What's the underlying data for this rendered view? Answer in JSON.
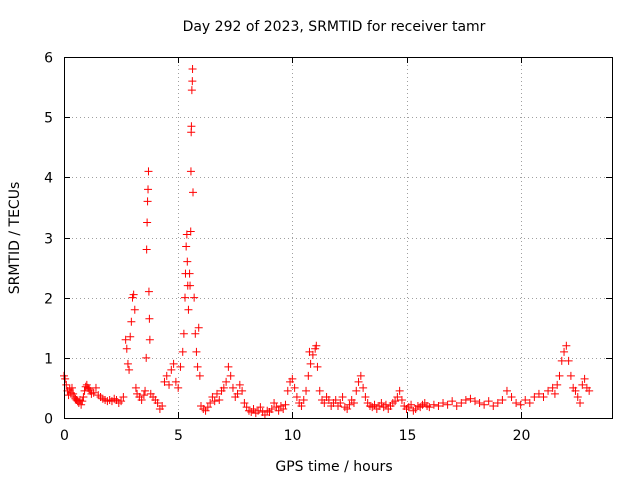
{
  "chart_data": {
    "type": "scatter",
    "title": "Day 292 of 2023, SRMTID for receiver tamr",
    "xlabel": "GPS time / hours",
    "ylabel": "SRMTID / TECUs",
    "xlim": [
      0,
      24
    ],
    "ylim": [
      0,
      6
    ],
    "xticks": [
      0,
      5,
      10,
      15,
      20
    ],
    "yticks": [
      0,
      1,
      2,
      3,
      4,
      5,
      6
    ],
    "grid": true,
    "marker": "+",
    "marker_color": "#ff0000",
    "series": [
      {
        "name": "SRMTID",
        "points": [
          [
            0.0,
            0.7
          ],
          [
            0.05,
            0.65
          ],
          [
            0.1,
            0.55
          ],
          [
            0.15,
            0.45
          ],
          [
            0.2,
            0.38
          ],
          [
            0.25,
            0.48
          ],
          [
            0.3,
            0.42
          ],
          [
            0.35,
            0.5
          ],
          [
            0.4,
            0.4
          ],
          [
            0.45,
            0.35
          ],
          [
            0.5,
            0.32
          ],
          [
            0.55,
            0.3
          ],
          [
            0.6,
            0.28
          ],
          [
            0.65,
            0.25
          ],
          [
            0.7,
            0.3
          ],
          [
            0.75,
            0.22
          ],
          [
            0.8,
            0.28
          ],
          [
            0.85,
            0.35
          ],
          [
            0.9,
            0.45
          ],
          [
            0.95,
            0.52
          ],
          [
            1.0,
            0.55
          ],
          [
            1.05,
            0.5
          ],
          [
            1.1,
            0.48
          ],
          [
            1.15,
            0.45
          ],
          [
            1.2,
            0.4
          ],
          [
            1.3,
            0.42
          ],
          [
            1.4,
            0.5
          ],
          [
            1.5,
            0.38
          ],
          [
            1.6,
            0.35
          ],
          [
            1.7,
            0.32
          ],
          [
            1.8,
            0.3
          ],
          [
            1.9,
            0.28
          ],
          [
            2.0,
            0.3
          ],
          [
            2.1,
            0.28
          ],
          [
            2.2,
            0.32
          ],
          [
            2.3,
            0.3
          ],
          [
            2.4,
            0.25
          ],
          [
            2.5,
            0.28
          ],
          [
            2.6,
            0.35
          ],
          [
            2.7,
            1.3
          ],
          [
            2.75,
            1.15
          ],
          [
            2.8,
            0.9
          ],
          [
            2.85,
            0.8
          ],
          [
            2.9,
            1.35
          ],
          [
            2.95,
            1.6
          ],
          [
            3.0,
            2.0
          ],
          [
            3.05,
            2.05
          ],
          [
            3.1,
            1.8
          ],
          [
            3.15,
            0.5
          ],
          [
            3.2,
            0.4
          ],
          [
            3.3,
            0.35
          ],
          [
            3.4,
            0.3
          ],
          [
            3.5,
            0.38
          ],
          [
            3.55,
            0.45
          ],
          [
            3.6,
            1.0
          ],
          [
            3.62,
            2.8
          ],
          [
            3.64,
            3.25
          ],
          [
            3.66,
            3.6
          ],
          [
            3.68,
            3.8
          ],
          [
            3.7,
            4.1
          ],
          [
            3.72,
            2.1
          ],
          [
            3.74,
            1.65
          ],
          [
            3.76,
            1.3
          ],
          [
            3.8,
            0.4
          ],
          [
            3.9,
            0.35
          ],
          [
            4.0,
            0.3
          ],
          [
            4.1,
            0.25
          ],
          [
            4.2,
            0.15
          ],
          [
            4.3,
            0.2
          ],
          [
            4.4,
            0.6
          ],
          [
            4.5,
            0.7
          ],
          [
            4.6,
            0.55
          ],
          [
            4.7,
            0.8
          ],
          [
            4.8,
            0.9
          ],
          [
            4.9,
            0.6
          ],
          [
            5.0,
            0.5
          ],
          [
            5.1,
            0.85
          ],
          [
            5.2,
            1.1
          ],
          [
            5.25,
            1.4
          ],
          [
            5.3,
            2.0
          ],
          [
            5.32,
            2.4
          ],
          [
            5.35,
            2.85
          ],
          [
            5.38,
            3.05
          ],
          [
            5.4,
            2.6
          ],
          [
            5.42,
            2.2
          ],
          [
            5.45,
            1.8
          ],
          [
            5.5,
            2.4
          ],
          [
            5.52,
            2.2
          ],
          [
            5.55,
            3.1
          ],
          [
            5.56,
            4.1
          ],
          [
            5.57,
            4.75
          ],
          [
            5.58,
            4.85
          ],
          [
            5.6,
            5.45
          ],
          [
            5.62,
            5.6
          ],
          [
            5.63,
            5.8
          ],
          [
            5.65,
            3.75
          ],
          [
            5.7,
            2.0
          ],
          [
            5.75,
            1.4
          ],
          [
            5.8,
            1.1
          ],
          [
            5.85,
            0.85
          ],
          [
            5.9,
            1.5
          ],
          [
            5.95,
            0.7
          ],
          [
            6.0,
            0.2
          ],
          [
            6.1,
            0.15
          ],
          [
            6.2,
            0.12
          ],
          [
            6.3,
            0.18
          ],
          [
            6.4,
            0.25
          ],
          [
            6.5,
            0.35
          ],
          [
            6.6,
            0.28
          ],
          [
            6.7,
            0.4
          ],
          [
            6.8,
            0.3
          ],
          [
            6.9,
            0.45
          ],
          [
            7.0,
            0.5
          ],
          [
            7.1,
            0.6
          ],
          [
            7.2,
            0.85
          ],
          [
            7.3,
            0.7
          ],
          [
            7.4,
            0.5
          ],
          [
            7.5,
            0.35
          ],
          [
            7.6,
            0.4
          ],
          [
            7.7,
            0.55
          ],
          [
            7.8,
            0.45
          ],
          [
            7.9,
            0.25
          ],
          [
            8.0,
            0.18
          ],
          [
            8.1,
            0.12
          ],
          [
            8.2,
            0.1
          ],
          [
            8.3,
            0.15
          ],
          [
            8.4,
            0.08
          ],
          [
            8.5,
            0.12
          ],
          [
            8.6,
            0.18
          ],
          [
            8.7,
            0.1
          ],
          [
            8.8,
            0.05
          ],
          [
            8.9,
            0.12
          ],
          [
            9.0,
            0.1
          ],
          [
            9.1,
            0.15
          ],
          [
            9.2,
            0.25
          ],
          [
            9.3,
            0.18
          ],
          [
            9.4,
            0.12
          ],
          [
            9.5,
            0.2
          ],
          [
            9.6,
            0.15
          ],
          [
            9.7,
            0.22
          ],
          [
            9.8,
            0.45
          ],
          [
            9.9,
            0.6
          ],
          [
            10.0,
            0.65
          ],
          [
            10.1,
            0.5
          ],
          [
            10.2,
            0.35
          ],
          [
            10.3,
            0.25
          ],
          [
            10.4,
            0.2
          ],
          [
            10.5,
            0.3
          ],
          [
            10.6,
            0.45
          ],
          [
            10.7,
            0.7
          ],
          [
            10.75,
            1.1
          ],
          [
            10.8,
            0.9
          ],
          [
            10.9,
            1.05
          ],
          [
            11.0,
            1.15
          ],
          [
            11.05,
            1.2
          ],
          [
            11.1,
            0.85
          ],
          [
            11.2,
            0.45
          ],
          [
            11.3,
            0.3
          ],
          [
            11.4,
            0.25
          ],
          [
            11.5,
            0.35
          ],
          [
            11.6,
            0.3
          ],
          [
            11.7,
            0.2
          ],
          [
            11.8,
            0.25
          ],
          [
            11.9,
            0.3
          ],
          [
            12.0,
            0.2
          ],
          [
            12.1,
            0.25
          ],
          [
            12.2,
            0.35
          ],
          [
            12.3,
            0.18
          ],
          [
            12.4,
            0.15
          ],
          [
            12.5,
            0.22
          ],
          [
            12.6,
            0.3
          ],
          [
            12.7,
            0.25
          ],
          [
            12.8,
            0.45
          ],
          [
            12.9,
            0.6
          ],
          [
            13.0,
            0.7
          ],
          [
            13.1,
            0.5
          ],
          [
            13.2,
            0.35
          ],
          [
            13.3,
            0.25
          ],
          [
            13.4,
            0.2
          ],
          [
            13.5,
            0.18
          ],
          [
            13.6,
            0.22
          ],
          [
            13.7,
            0.15
          ],
          [
            13.8,
            0.2
          ],
          [
            13.9,
            0.25
          ],
          [
            14.0,
            0.18
          ],
          [
            14.1,
            0.22
          ],
          [
            14.2,
            0.15
          ],
          [
            14.3,
            0.2
          ],
          [
            14.4,
            0.25
          ],
          [
            14.5,
            0.28
          ],
          [
            14.6,
            0.35
          ],
          [
            14.7,
            0.45
          ],
          [
            14.8,
            0.3
          ],
          [
            14.9,
            0.2
          ],
          [
            15.0,
            0.15
          ],
          [
            15.1,
            0.18
          ],
          [
            15.2,
            0.22
          ],
          [
            15.3,
            0.12
          ],
          [
            15.4,
            0.15
          ],
          [
            15.5,
            0.2
          ],
          [
            15.6,
            0.18
          ],
          [
            15.7,
            0.22
          ],
          [
            15.8,
            0.25
          ],
          [
            15.9,
            0.2
          ],
          [
            16.0,
            0.18
          ],
          [
            16.2,
            0.22
          ],
          [
            16.4,
            0.2
          ],
          [
            16.6,
            0.25
          ],
          [
            16.8,
            0.22
          ],
          [
            17.0,
            0.28
          ],
          [
            17.2,
            0.2
          ],
          [
            17.4,
            0.25
          ],
          [
            17.6,
            0.3
          ],
          [
            17.8,
            0.32
          ],
          [
            18.0,
            0.28
          ],
          [
            18.2,
            0.25
          ],
          [
            18.4,
            0.22
          ],
          [
            18.6,
            0.28
          ],
          [
            18.8,
            0.2
          ],
          [
            19.0,
            0.25
          ],
          [
            19.2,
            0.3
          ],
          [
            19.4,
            0.45
          ],
          [
            19.6,
            0.35
          ],
          [
            19.8,
            0.25
          ],
          [
            20.0,
            0.22
          ],
          [
            20.2,
            0.3
          ],
          [
            20.4,
            0.25
          ],
          [
            20.6,
            0.35
          ],
          [
            20.8,
            0.4
          ],
          [
            21.0,
            0.35
          ],
          [
            21.2,
            0.45
          ],
          [
            21.4,
            0.5
          ],
          [
            21.5,
            0.4
          ],
          [
            21.6,
            0.55
          ],
          [
            21.7,
            0.7
          ],
          [
            21.8,
            0.95
          ],
          [
            21.9,
            1.1
          ],
          [
            22.0,
            1.2
          ],
          [
            22.1,
            0.95
          ],
          [
            22.2,
            0.7
          ],
          [
            22.3,
            0.5
          ],
          [
            22.4,
            0.45
          ],
          [
            22.5,
            0.35
          ],
          [
            22.6,
            0.25
          ],
          [
            22.7,
            0.55
          ],
          [
            22.8,
            0.65
          ],
          [
            22.9,
            0.5
          ],
          [
            23.0,
            0.45
          ]
        ]
      }
    ]
  }
}
